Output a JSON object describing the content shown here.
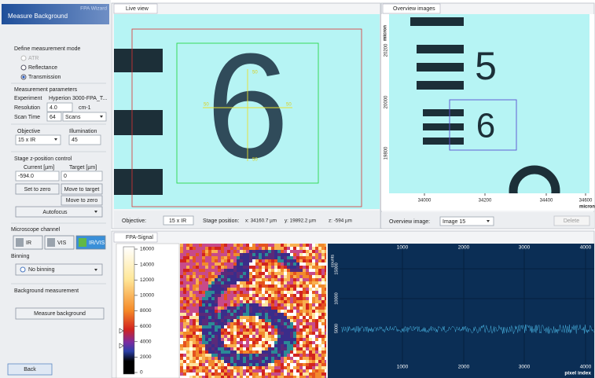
{
  "wizard": {
    "title": "Measure Background",
    "badge": "FPA Wizard",
    "mode": {
      "label": "Define measurement mode",
      "options": [
        "ATR",
        "Reflectance",
        "Transmission"
      ]
    },
    "params": {
      "label": "Measurement parameters",
      "experiment_label": "Experiment",
      "experiment": "Hyperion 3000-FPA_T...",
      "resolution_label": "Resolution",
      "resolution": "4.0",
      "resolution_unit": "cm-1",
      "scan_time_label": "Scan Time",
      "scan_time": "64",
      "scan_unit": "Scans"
    },
    "objective_label": "Objective",
    "objective": "15 x IR",
    "illumination_label": "Illumination",
    "illumination": "45",
    "stage": {
      "label": "Stage z-position control",
      "current_label": "Current [µm]",
      "target_label": "Target [µm]",
      "current": "-594.0",
      "target": "0",
      "set_zero": "Set to zero",
      "move_target": "Move to target",
      "move_zero": "Move to zero",
      "autofocus": "Autofocus"
    },
    "channel": {
      "label": "Microscope channel",
      "buttons": [
        "IR",
        "VIS",
        "IR/VIS"
      ]
    },
    "binning": {
      "label": "Binning",
      "value": "No binning"
    },
    "background": {
      "label": "Background measurement",
      "button": "Measure background"
    },
    "back": "Back"
  },
  "live_view": {
    "tab": "Live view",
    "image_digit": "6",
    "crosshair_labels": [
      "50",
      "50",
      "50",
      "50"
    ],
    "objective_label": "Objective:",
    "objective": "15 x IR",
    "stage_label": "Stage position:",
    "x": "x: 34160.7 µm",
    "y": "y: 19892.2 µm",
    "z": "z: -594 µm"
  },
  "overview": {
    "tab": "Overview images",
    "image_digits": [
      "5",
      "6"
    ],
    "y_axis_label": "micron",
    "yticks": [
      20200,
      20000,
      19800
    ],
    "xticks": [
      34000,
      34200,
      34400,
      34600
    ],
    "x_axis_label": "micron",
    "image_label": "Overview image:",
    "image": "Image 15",
    "delete": "Delete"
  },
  "fpa": {
    "tab": "FPA-Signal",
    "colorbar_ticks": [
      16000,
      14000,
      12000,
      10000,
      8000,
      6000,
      4000,
      2000,
      0
    ],
    "x_ticks": [
      1000,
      2000,
      3000,
      4000
    ],
    "y_label": "counts",
    "y_ticks": [
      15000,
      10000,
      5000
    ],
    "x_label": "pixel index"
  }
}
